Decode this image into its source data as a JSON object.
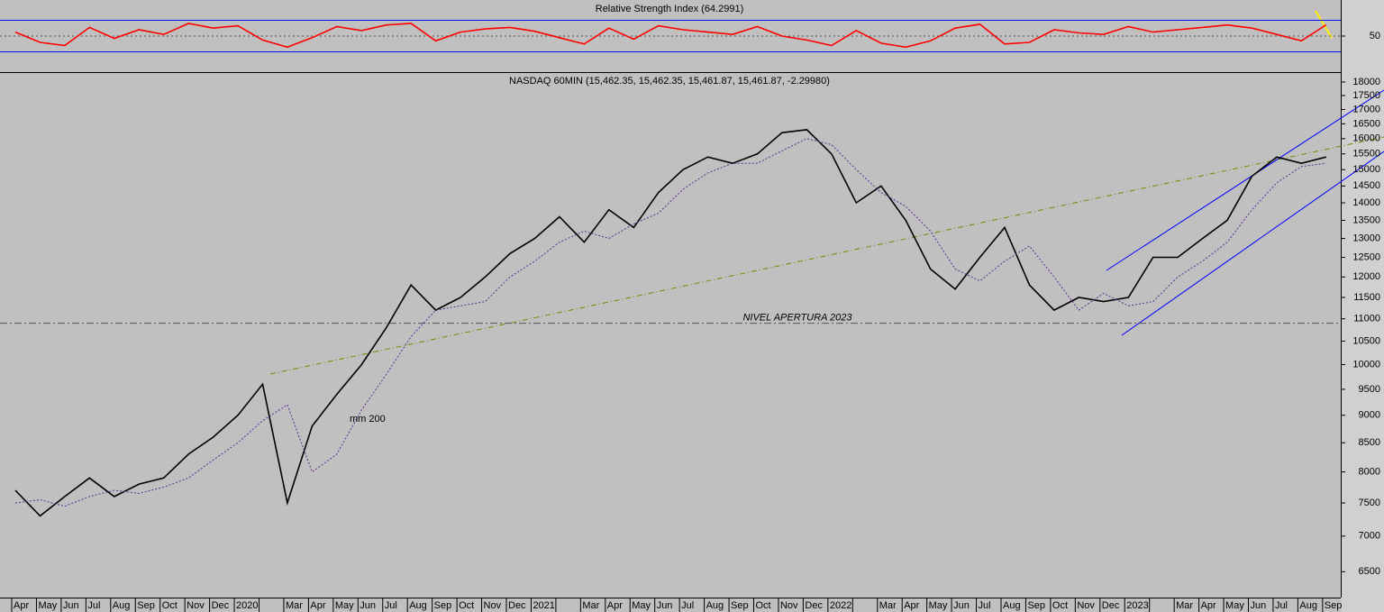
{
  "chart_data": [
    {
      "type": "line",
      "title": "Relative Strength Index (64.2991)",
      "series": [
        {
          "color": "#ff0000",
          "values": [
            55,
            42,
            38,
            61,
            47,
            58,
            52,
            66,
            60,
            63,
            45,
            36,
            48,
            62,
            57,
            64,
            66,
            44,
            55,
            59,
            61,
            56,
            48,
            40,
            60,
            46,
            63,
            58,
            55,
            52,
            62,
            50,
            45,
            38,
            57,
            41,
            36,
            44,
            60,
            65,
            40,
            42,
            58,
            54,
            52,
            62,
            55,
            58,
            61,
            64,
            60,
            52,
            44,
            64.2991
          ]
        }
      ],
      "levels": [
        30,
        70
      ],
      "level_color": "#0000ff",
      "ylim": [
        4.3,
        95.7
      ],
      "yticks": [
        50
      ]
    },
    {
      "type": "line",
      "title": "NASDAQ 60MIN (15,462.35, 15,462.35, 15,461.87, 15,461.87, -2.29980)",
      "categories": [
        "Apr",
        "May",
        "Jun",
        "Jul",
        "Aug",
        "Sep",
        "Oct",
        "Nov",
        "Dec",
        "2020",
        null,
        "Mar",
        "Apr",
        "May",
        "Jun",
        "Jul",
        "Aug",
        "Sep",
        "Oct",
        "Nov",
        "Dec",
        "2021",
        null,
        "Mar",
        "Apr",
        "May",
        "Jun",
        "Jul",
        "Aug",
        "Sep",
        "Oct",
        "Nov",
        "Dec",
        "2022",
        null,
        "Mar",
        "Apr",
        "May",
        "Jun",
        "Jul",
        "Aug",
        "Sep",
        "Oct",
        "Nov",
        "Dec",
        "2023",
        null,
        "Mar",
        "Apr",
        "May",
        "Jun",
        "Jul",
        "Aug",
        "Sep"
      ],
      "series": [
        {
          "color": "#000000",
          "values": [
            7700,
            7300,
            7600,
            7900,
            7600,
            7800,
            7900,
            8300,
            8600,
            9000,
            9600,
            7500,
            8800,
            9400,
            10000,
            10800,
            11800,
            11200,
            11500,
            12000,
            12600,
            13000,
            13600,
            12900,
            13800,
            13300,
            14300,
            15000,
            15400,
            15200,
            15500,
            16200,
            16300,
            15500,
            14000,
            14500,
            13500,
            12200,
            11700,
            12500,
            13300,
            11800,
            11200,
            11500,
            11400,
            11500,
            12500,
            12500,
            13000,
            13500,
            14800,
            15400,
            15200,
            15400
          ]
        },
        {
          "name": "mm 200",
          "color": "#5a2d91",
          "dashed": true,
          "values": [
            7500,
            7550,
            7450,
            7600,
            7700,
            7650,
            7750,
            7900,
            8200,
            8500,
            8900,
            9200,
            8000,
            8300,
            9100,
            9800,
            10600,
            11200,
            11300,
            11400,
            12000,
            12400,
            12900,
            13200,
            13000,
            13400,
            13700,
            14400,
            14900,
            15200,
            15200,
            15600,
            16000,
            15800,
            15000,
            14300,
            13900,
            13200,
            12200,
            11900,
            12400,
            12800,
            12000,
            11200,
            11600,
            11300,
            11400,
            12000,
            12400,
            12900,
            13800,
            14600,
            15100,
            15200
          ]
        }
      ],
      "hline": {
        "value": 10900,
        "label": "NIVEL APERTURA 2023"
      },
      "log_scale": true,
      "ylim": [
        6160,
        18340
      ],
      "yticks": [
        6500,
        7000,
        7500,
        8000,
        8500,
        9000,
        9500,
        10000,
        10500,
        11000,
        11500,
        12000,
        12500,
        13000,
        13500,
        14000,
        14500,
        15000,
        15500,
        16000,
        16500,
        17000,
        17500,
        18000
      ]
    }
  ]
}
